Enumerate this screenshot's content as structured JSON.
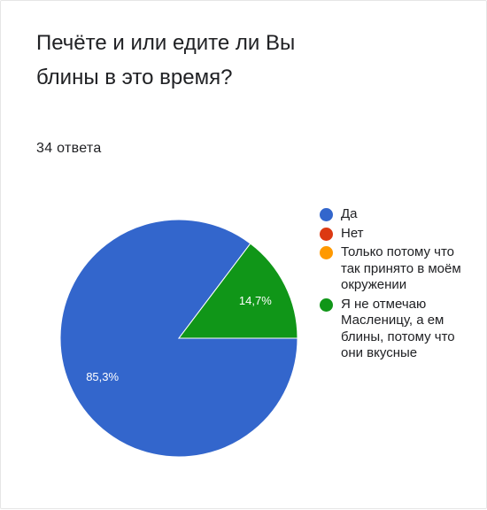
{
  "question": {
    "title": "Печёте и или едите ли Вы блины в это время?",
    "response_count": "34 ответа"
  },
  "chart_data": {
    "type": "pie",
    "categories": [
      "Да",
      "Нет",
      "Только потому что так принято в моём окружении",
      "Я не отмечаю Масленицу, а ем блины, потому что они вкусные"
    ],
    "values": [
      85.3,
      0,
      0,
      14.7
    ],
    "data_labels": [
      "85,3%",
      "",
      "",
      "14,7%"
    ],
    "colors": [
      "#3366cc",
      "#dc3912",
      "#ff9900",
      "#109618"
    ],
    "legend": "right"
  }
}
